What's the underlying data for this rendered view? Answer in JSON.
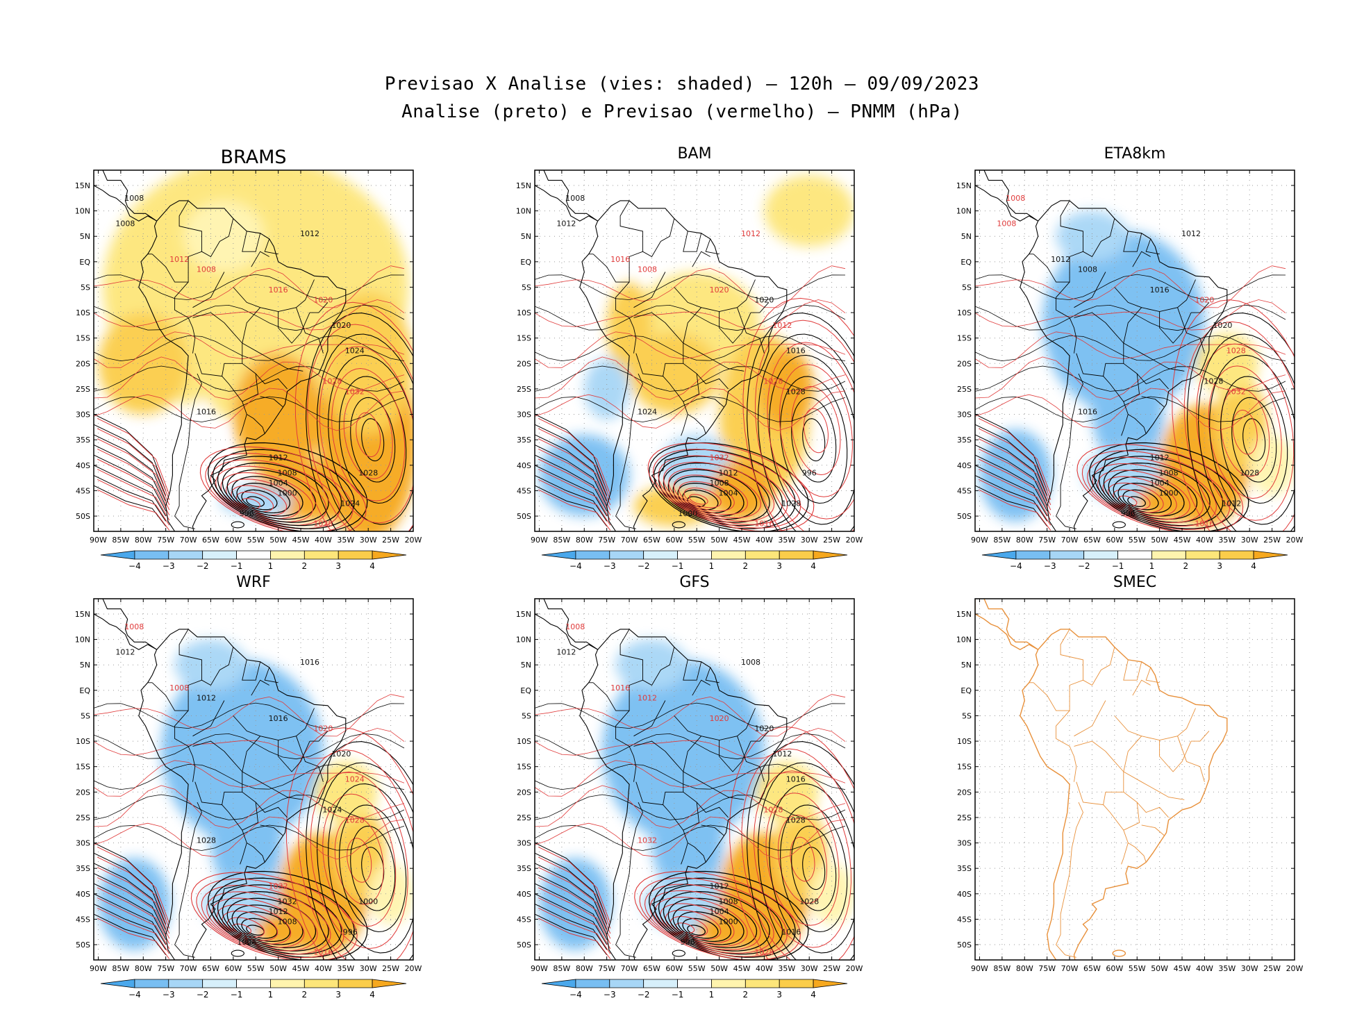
{
  "header": {
    "title_line1": "Previsao X Analise (vies: shaded) – 120h – 09/09/2023",
    "title_line2": "Analise (preto) e Previsao (vermelho) – PNMM (hPa)"
  },
  "axes": {
    "lat_labels": [
      "15N",
      "10N",
      "5N",
      "EQ",
      "5S",
      "10S",
      "15S",
      "20S",
      "25S",
      "30S",
      "35S",
      "40S",
      "45S",
      "50S"
    ],
    "lon_labels": [
      "90W",
      "85W",
      "80W",
      "75W",
      "70W",
      "65W",
      "60W",
      "55W",
      "50W",
      "45W",
      "40W",
      "35W",
      "30W",
      "25W",
      "20W"
    ]
  },
  "colorbar": {
    "ticks": [
      "−4",
      "−3",
      "−2",
      "−1",
      "1",
      "2",
      "3",
      "4"
    ],
    "colors": [
      "#4aa8ec",
      "#78bef2",
      "#a7d6f6",
      "#d7f0fb",
      "#ffffff",
      "#fff4ae",
      "#fde67a",
      "#fbcd4a",
      "#f6a81e"
    ]
  },
  "colors": {
    "analysis_contour": "#000000",
    "forecast_contour": "#e03a3a",
    "smec_coast": "#e8903a"
  },
  "panels": [
    {
      "id": "brams",
      "title": "BRAMS",
      "bias": "warm",
      "labels": [
        {
          "t": "1008",
          "c": "k"
        },
        {
          "t": "1008",
          "c": "k"
        },
        {
          "t": "1012",
          "c": "k"
        },
        {
          "t": "1008",
          "c": "r"
        },
        {
          "t": "1012",
          "c": "r"
        },
        {
          "t": "1016",
          "c": "r"
        },
        {
          "t": "1020",
          "c": "r"
        },
        {
          "t": "1020",
          "c": "k"
        },
        {
          "t": "1024",
          "c": "k"
        },
        {
          "t": "1028",
          "c": "r"
        },
        {
          "t": "1032",
          "c": "r"
        },
        {
          "t": "1016",
          "c": "k"
        },
        {
          "t": "1012",
          "c": "k"
        },
        {
          "t": "1008",
          "c": "k"
        },
        {
          "t": "1004",
          "c": "k"
        },
        {
          "t": "1000",
          "c": "k"
        },
        {
          "t": "996",
          "c": "k"
        },
        {
          "t": "1028",
          "c": "k"
        },
        {
          "t": "1024",
          "c": "k"
        },
        {
          "t": "1028",
          "c": "r"
        }
      ]
    },
    {
      "id": "bam",
      "title": "BAM",
      "bias": "mixed",
      "labels": [
        {
          "t": "1008",
          "c": "k"
        },
        {
          "t": "1012",
          "c": "k"
        },
        {
          "t": "1012",
          "c": "r"
        },
        {
          "t": "1008",
          "c": "r"
        },
        {
          "t": "1016",
          "c": "r"
        },
        {
          "t": "1020",
          "c": "r"
        },
        {
          "t": "1020",
          "c": "k"
        },
        {
          "t": "1012",
          "c": "r"
        },
        {
          "t": "1016",
          "c": "k"
        },
        {
          "t": "1028",
          "c": "r"
        },
        {
          "t": "1028",
          "c": "k"
        },
        {
          "t": "1024",
          "c": "k"
        },
        {
          "t": "1032",
          "c": "r"
        },
        {
          "t": "1012",
          "c": "k"
        },
        {
          "t": "1008",
          "c": "k"
        },
        {
          "t": "1004",
          "c": "k"
        },
        {
          "t": "1000",
          "c": "k"
        },
        {
          "t": "996",
          "c": "k"
        },
        {
          "t": "1028",
          "c": "k"
        },
        {
          "t": "1016",
          "c": "r"
        }
      ]
    },
    {
      "id": "eta8km",
      "title": "ETA8km",
      "bias": "cold",
      "labels": [
        {
          "t": "1008",
          "c": "r"
        },
        {
          "t": "1008",
          "c": "r"
        },
        {
          "t": "1012",
          "c": "k"
        },
        {
          "t": "1008",
          "c": "k"
        },
        {
          "t": "1012",
          "c": "k"
        },
        {
          "t": "1016",
          "c": "k"
        },
        {
          "t": "1020",
          "c": "r"
        },
        {
          "t": "1020",
          "c": "k"
        },
        {
          "t": "1028",
          "c": "r"
        },
        {
          "t": "1028",
          "c": "k"
        },
        {
          "t": "1032",
          "c": "r"
        },
        {
          "t": "1016",
          "c": "k"
        },
        {
          "t": "1012",
          "c": "k"
        },
        {
          "t": "1008",
          "c": "k"
        },
        {
          "t": "1004",
          "c": "k"
        },
        {
          "t": "1000",
          "c": "k"
        },
        {
          "t": "996",
          "c": "k"
        },
        {
          "t": "1028",
          "c": "k"
        },
        {
          "t": "1012",
          "c": "k"
        },
        {
          "t": "1016",
          "c": "r"
        }
      ]
    },
    {
      "id": "wrf",
      "title": "WRF",
      "bias": "cold",
      "labels": [
        {
          "t": "1008",
          "c": "r"
        },
        {
          "t": "1012",
          "c": "k"
        },
        {
          "t": "1016",
          "c": "k"
        },
        {
          "t": "1012",
          "c": "k"
        },
        {
          "t": "1008",
          "c": "r"
        },
        {
          "t": "1016",
          "c": "k"
        },
        {
          "t": "1020",
          "c": "r"
        },
        {
          "t": "1020",
          "c": "k"
        },
        {
          "t": "1024",
          "c": "r"
        },
        {
          "t": "1024",
          "c": "k"
        },
        {
          "t": "1028",
          "c": "r"
        },
        {
          "t": "1028",
          "c": "k"
        },
        {
          "t": "1032",
          "c": "r"
        },
        {
          "t": "1032",
          "c": "k"
        },
        {
          "t": "1012",
          "c": "k"
        },
        {
          "t": "1008",
          "c": "k"
        },
        {
          "t": "1004",
          "c": "k"
        },
        {
          "t": "1000",
          "c": "k"
        },
        {
          "t": "996",
          "c": "k"
        },
        {
          "t": "1016",
          "c": "r"
        }
      ]
    },
    {
      "id": "gfs",
      "title": "GFS",
      "bias": "cold",
      "labels": [
        {
          "t": "1008",
          "c": "r"
        },
        {
          "t": "1012",
          "c": "k"
        },
        {
          "t": "1008",
          "c": "k"
        },
        {
          "t": "1012",
          "c": "r"
        },
        {
          "t": "1016",
          "c": "r"
        },
        {
          "t": "1020",
          "c": "r"
        },
        {
          "t": "1020",
          "c": "k"
        },
        {
          "t": "1012",
          "c": "k"
        },
        {
          "t": "1016",
          "c": "k"
        },
        {
          "t": "1028",
          "c": "r"
        },
        {
          "t": "1028",
          "c": "k"
        },
        {
          "t": "1032",
          "c": "r"
        },
        {
          "t": "1012",
          "c": "k"
        },
        {
          "t": "1008",
          "c": "k"
        },
        {
          "t": "1004",
          "c": "k"
        },
        {
          "t": "1000",
          "c": "k"
        },
        {
          "t": "996",
          "c": "k"
        },
        {
          "t": "1028",
          "c": "k"
        },
        {
          "t": "1016",
          "c": "k"
        },
        {
          "t": "1028",
          "c": "r"
        }
      ]
    },
    {
      "id": "smec",
      "title": "SMEC",
      "bias": "none",
      "labels": []
    }
  ]
}
